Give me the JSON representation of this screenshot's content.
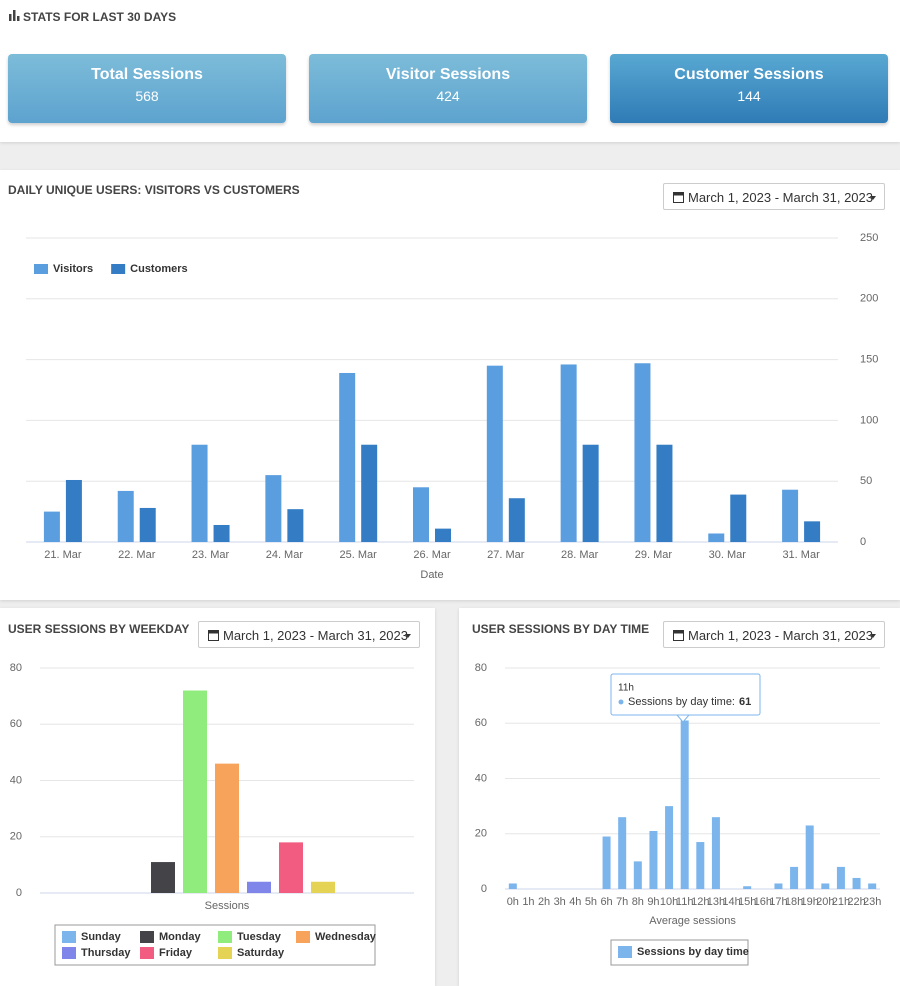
{
  "header": {
    "title": "STATS FOR LAST 30 DAYS"
  },
  "cards": [
    {
      "title": "Total Sessions",
      "value": 568
    },
    {
      "title": "Visitor Sessions",
      "value": 424
    },
    {
      "title": "Customer Sessions",
      "value": 144
    }
  ],
  "chart_data": [
    {
      "type": "bar",
      "title": "DAILY UNIQUE USERS: VISITORS VS CUSTOMERS",
      "date_range": "March 1, 2023 - March 31, 2023",
      "x_label": "Date",
      "categories": [
        "21. Mar",
        "22. Mar",
        "23. Mar",
        "24. Mar",
        "25. Mar",
        "26. Mar",
        "27. Mar",
        "28. Mar",
        "29. Mar",
        "30. Mar",
        "31. Mar"
      ],
      "series": [
        {
          "name": "Visitors",
          "color": "#5b9ee0",
          "values": [
            25,
            42,
            80,
            55,
            139,
            45,
            145,
            146,
            147,
            7,
            43
          ]
        },
        {
          "name": "Customers",
          "color": "#347dc4",
          "values": [
            51,
            28,
            14,
            27,
            80,
            11,
            36,
            80,
            80,
            39,
            17
          ]
        }
      ],
      "ylim": [
        0,
        250
      ],
      "yticks": [
        0,
        50,
        100,
        150,
        200,
        250
      ],
      "y_axis_side": "right",
      "grid": true,
      "legend": "top-left"
    },
    {
      "type": "bar",
      "title": "USER SESSIONS BY WEEKDAY",
      "date_range": "March 1, 2023 - March 31, 2023",
      "categories": [
        "Sessions"
      ],
      "series": [
        {
          "name": "Sunday",
          "color": "#7cb5ec",
          "values": [
            0
          ]
        },
        {
          "name": "Monday",
          "color": "#434348",
          "values": [
            11
          ]
        },
        {
          "name": "Tuesday",
          "color": "#90ed7d",
          "values": [
            72
          ]
        },
        {
          "name": "Wednesday",
          "color": "#f7a35c",
          "values": [
            46
          ]
        },
        {
          "name": "Thursday",
          "color": "#8085e9",
          "values": [
            4
          ]
        },
        {
          "name": "Friday",
          "color": "#f15c80",
          "values": [
            18
          ]
        },
        {
          "name": "Saturday",
          "color": "#e4d354",
          "values": [
            4
          ]
        }
      ],
      "ylim": [
        0,
        80
      ],
      "yticks": [
        0,
        20,
        40,
        60,
        80
      ],
      "y_axis_side": "left",
      "grid": true,
      "legend": "bottom"
    },
    {
      "type": "bar",
      "title": "USER SESSIONS BY DAY TIME",
      "date_range": "March 1, 2023 - March 31, 2023",
      "x_label": "Average sessions",
      "categories": [
        "0h",
        "1h",
        "2h",
        "3h",
        "4h",
        "5h",
        "6h",
        "7h",
        "8h",
        "9h",
        "10h",
        "11h",
        "12h",
        "13h",
        "14h",
        "15h",
        "16h",
        "17h",
        "18h",
        "19h",
        "20h",
        "21h",
        "22h",
        "23h"
      ],
      "series": [
        {
          "name": "Sessions by day time",
          "color": "#7cb5ec",
          "values": [
            2,
            0,
            0,
            0,
            0,
            0,
            19,
            26,
            10,
            21,
            30,
            61,
            17,
            26,
            0,
            1,
            0,
            2,
            8,
            23,
            2,
            8,
            4,
            2
          ]
        }
      ],
      "tooltip": {
        "title": "11h",
        "text": "Sessions by day time:",
        "value": 61
      },
      "ylim": [
        0,
        80
      ],
      "yticks": [
        0,
        20,
        40,
        60,
        80
      ],
      "y_axis_side": "left",
      "grid": true,
      "legend": "bottom"
    }
  ]
}
